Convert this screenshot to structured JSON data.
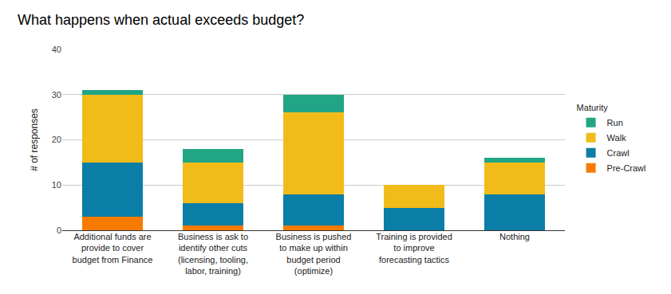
{
  "chart_data": {
    "type": "bar",
    "title": "What happens when actual exceeds budget?",
    "y_label": "# of responses",
    "legend_title": "Maturity",
    "categories": [
      "Additional funds are provide to cover budget from Finance",
      "Business is ask to identify other cuts (licensing, tooling, labor, training)",
      "Business is pushed to make up within budget period (optimize)",
      "Training is provided to improve forecasting tactics",
      "Nothing"
    ],
    "series": [
      {
        "name": "Pre-Crawl",
        "color": "#f77b00",
        "values": [
          3,
          1,
          1,
          0,
          0
        ]
      },
      {
        "name": "Crawl",
        "color": "#0a7ea6",
        "values": [
          12,
          5,
          7,
          5,
          8
        ]
      },
      {
        "name": "Walk",
        "color": "#f1bc1a",
        "values": [
          15,
          9,
          18,
          5,
          7
        ]
      },
      {
        "name": "Run",
        "color": "#21a585",
        "values": [
          1,
          3,
          4,
          0,
          1
        ]
      }
    ],
    "stacked": true,
    "ylim": [
      0,
      40
    ],
    "yticks": [
      0,
      10,
      20,
      30,
      40
    ],
    "grid": true,
    "legend": "right"
  }
}
